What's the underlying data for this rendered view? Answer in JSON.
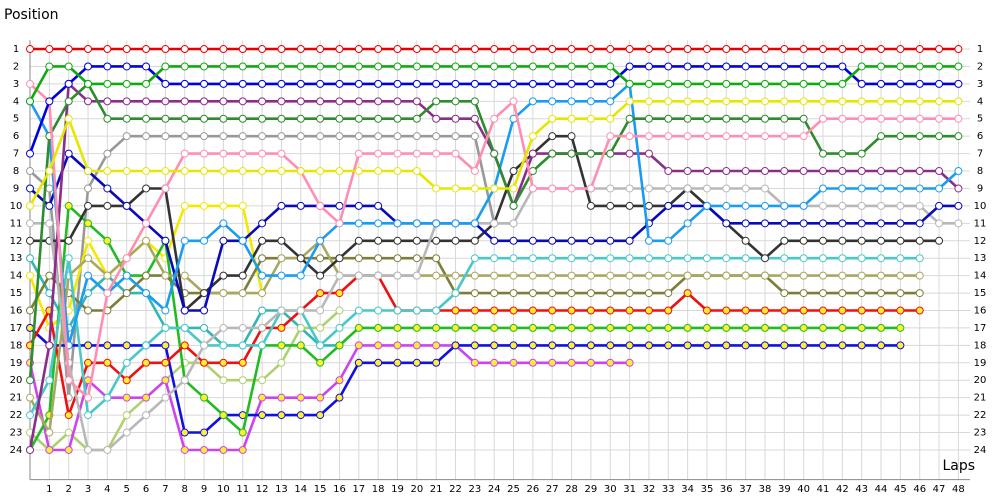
{
  "chart_data": {
    "type": "line",
    "ylabel": "Position",
    "xlabel": "Laps",
    "x": [
      0,
      1,
      2,
      3,
      4,
      5,
      6,
      7,
      8,
      9,
      10,
      11,
      12,
      13,
      14,
      15,
      16,
      17,
      18,
      19,
      20,
      21,
      22,
      23,
      24,
      25,
      26,
      27,
      28,
      29,
      30,
      31,
      32,
      33,
      34,
      35,
      36,
      37,
      38,
      39,
      40,
      41,
      42,
      43,
      44,
      45,
      46,
      47,
      48
    ],
    "xlim": [
      0,
      48.6
    ],
    "xticks": [
      1,
      2,
      3,
      4,
      5,
      6,
      7,
      8,
      9,
      10,
      11,
      12,
      13,
      14,
      15,
      16,
      17,
      18,
      19,
      20,
      21,
      22,
      23,
      24,
      25,
      26,
      27,
      28,
      29,
      30,
      31,
      32,
      33,
      34,
      35,
      36,
      37,
      38,
      39,
      40,
      41,
      42,
      43,
      44,
      45,
      46,
      47,
      48
    ],
    "ylim": [
      0.5,
      25.7
    ],
    "yticks": [
      1,
      2,
      3,
      4,
      5,
      6,
      7,
      8,
      9,
      10,
      11,
      12,
      13,
      14,
      15,
      16,
      17,
      18,
      19,
      20,
      21,
      22,
      23,
      24
    ],
    "y_inverted": true,
    "grid": true,
    "grid_color": "#d8d8d8",
    "series": [
      {
        "color": "#e80000",
        "marker_fill": "#ffffff",
        "values": [
          1,
          1,
          1,
          1,
          1,
          1,
          1,
          1,
          1,
          1,
          1,
          1,
          1,
          1,
          1,
          1,
          1,
          1,
          1,
          1,
          1,
          1,
          1,
          1,
          1,
          1,
          1,
          1,
          1,
          1,
          1,
          1,
          1,
          1,
          1,
          1,
          1,
          1,
          1,
          1,
          1,
          1,
          1,
          1,
          1,
          1,
          1,
          1,
          1
        ]
      },
      {
        "color": "#11aa11",
        "marker_fill": "#ffffff",
        "values": [
          4,
          2,
          2,
          3,
          3,
          3,
          3,
          2,
          2,
          2,
          2,
          2,
          2,
          2,
          2,
          2,
          2,
          2,
          2,
          2,
          2,
          2,
          2,
          2,
          2,
          2,
          2,
          2,
          2,
          2,
          2,
          3,
          3,
          3,
          3,
          3,
          3,
          3,
          3,
          3,
          3,
          3,
          3,
          2,
          2,
          2,
          2,
          2,
          2
        ]
      },
      {
        "color": "#0000dd",
        "marker_fill": "#ffffff",
        "values": [
          7,
          4,
          3,
          2,
          2,
          2,
          2,
          3,
          3,
          3,
          3,
          3,
          3,
          3,
          3,
          3,
          3,
          3,
          3,
          3,
          3,
          3,
          3,
          3,
          3,
          3,
          3,
          3,
          3,
          3,
          3,
          2,
          2,
          2,
          2,
          2,
          2,
          2,
          2,
          2,
          2,
          2,
          2,
          3,
          3,
          3,
          3,
          3,
          3
        ]
      },
      {
        "color": "#e6e600",
        "marker_fill": "#ffffff",
        "values": [
          10,
          8,
          5,
          8,
          8,
          8,
          8,
          8,
          8,
          8,
          8,
          8,
          8,
          8,
          8,
          8,
          8,
          8,
          8,
          8,
          8,
          9,
          9,
          9,
          9,
          9,
          6,
          5,
          5,
          5,
          5,
          4,
          4,
          4,
          4,
          4,
          4,
          4,
          4,
          4,
          4,
          4,
          4,
          4,
          4,
          4,
          4,
          4,
          4
        ]
      },
      {
        "color": "#ff8fb0",
        "marker_fill": "#ffffff",
        "values": [
          3,
          4,
          20,
          21,
          15,
          13,
          11,
          9,
          7,
          7,
          7,
          7,
          7,
          7,
          8,
          10,
          11,
          7,
          7,
          7,
          7,
          7,
          7,
          8,
          5,
          4,
          9,
          9,
          9,
          9,
          6,
          6,
          6,
          6,
          6,
          6,
          6,
          6,
          6,
          6,
          6,
          5,
          5,
          5,
          5,
          5,
          5,
          5,
          5
        ]
      },
      {
        "color": "#2e8b2e",
        "marker_fill": "#ffffff",
        "values": [
          20,
          6,
          4,
          3,
          5,
          5,
          5,
          5,
          5,
          5,
          5,
          5,
          5,
          5,
          5,
          5,
          5,
          5,
          5,
          5,
          5,
          4,
          4,
          4,
          7,
          10,
          8,
          7,
          7,
          7,
          7,
          5,
          5,
          5,
          5,
          5,
          5,
          5,
          5,
          5,
          5,
          7,
          7,
          7,
          6,
          6,
          6,
          6,
          6
        ]
      },
      {
        "color": "#1a9cf0",
        "marker_fill": "#ffffff",
        "values": [
          4,
          6,
          18,
          14,
          15,
          14,
          15,
          16,
          12,
          12,
          11,
          12,
          14,
          14,
          14,
          12,
          11,
          11,
          11,
          11,
          11,
          11,
          11,
          11,
          9,
          5,
          4,
          4,
          4,
          4,
          4,
          3,
          12,
          12,
          11,
          10,
          10,
          10,
          10,
          10,
          10,
          9,
          9,
          9,
          9,
          9,
          9,
          9,
          8
        ]
      },
      {
        "color": "#8b2d8b",
        "marker_fill": "#ffffff",
        "values": [
          24,
          18,
          3,
          4,
          4,
          4,
          4,
          4,
          4,
          4,
          4,
          4,
          4,
          4,
          4,
          4,
          4,
          4,
          4,
          4,
          4,
          5,
          5,
          5,
          7,
          10,
          7,
          7,
          7,
          7,
          7,
          7,
          7,
          8,
          8,
          8,
          8,
          8,
          8,
          8,
          8,
          8,
          8,
          8,
          8,
          8,
          8,
          8,
          9
        ]
      },
      {
        "color": "#0a0ab8",
        "marker_fill": "#ffffff",
        "values": [
          9,
          10,
          7,
          8,
          9,
          10,
          11,
          12,
          16,
          16,
          12,
          12,
          11,
          10,
          10,
          10,
          10,
          10,
          10,
          11,
          11,
          11,
          11,
          11,
          12,
          12,
          12,
          12,
          12,
          12,
          12,
          12,
          11,
          10,
          10,
          10,
          11,
          11,
          11,
          11,
          11,
          11,
          11,
          11,
          11,
          11,
          11,
          10,
          10
        ]
      },
      {
        "color": "#b8b8b8",
        "marker_fill": "#ffffff",
        "values": [
          11,
          11,
          19,
          24,
          24,
          23,
          22,
          21,
          20,
          18,
          17,
          17,
          17,
          16,
          16,
          16,
          14,
          14,
          14,
          14,
          14,
          11,
          11,
          11,
          11,
          11,
          9,
          9,
          9,
          9,
          9,
          9,
          9,
          9,
          9,
          9,
          9,
          9,
          9,
          10,
          10,
          10,
          10,
          10,
          10,
          10,
          10,
          11,
          11
        ]
      },
      {
        "color": "#333333",
        "marker_fill": "#ffffff",
        "values": [
          12,
          12,
          12,
          10,
          10,
          10,
          9,
          9,
          16,
          15,
          14,
          14,
          12,
          12,
          13,
          14,
          13,
          12,
          12,
          12,
          12,
          12,
          12,
          12,
          11,
          8,
          7,
          6,
          6,
          10,
          10,
          10,
          10,
          10,
          9,
          10,
          11,
          12,
          13,
          12,
          12,
          12,
          12,
          12,
          12,
          12,
          12,
          12,
          null
        ]
      },
      {
        "color": "#48c8c8",
        "marker_fill": "#ffffff",
        "values": [
          22,
          20,
          13,
          22,
          21,
          19,
          18,
          17,
          17,
          18,
          18,
          18,
          18,
          16,
          16,
          18,
          17,
          16,
          16,
          16,
          16,
          16,
          15,
          13,
          13,
          13,
          13,
          13,
          13,
          13,
          13,
          13,
          13,
          13,
          13,
          13,
          13,
          13,
          13,
          13,
          13,
          13,
          13,
          13,
          13,
          13,
          13,
          null,
          null
        ]
      },
      {
        "color": "#a8a860",
        "marker_fill": "#ffffff",
        "values": [
          21,
          23,
          14,
          13,
          14,
          13,
          12,
          14,
          14,
          15,
          15,
          15,
          15,
          13,
          13,
          12,
          14,
          14,
          14,
          14,
          14,
          14,
          14,
          14,
          14,
          14,
          14,
          14,
          14,
          14,
          14,
          14,
          14,
          14,
          14,
          14,
          14,
          14,
          14,
          14,
          14,
          14,
          14,
          14,
          14,
          14,
          14,
          null,
          null
        ]
      },
      {
        "color": "#7d7d3a",
        "marker_fill": "#ffffff",
        "values": [
          16,
          14,
          15,
          16,
          16,
          15,
          14,
          14,
          15,
          15,
          15,
          15,
          13,
          13,
          13,
          13,
          13,
          13,
          13,
          13,
          13,
          13,
          15,
          15,
          15,
          15,
          15,
          15,
          15,
          15,
          15,
          15,
          15,
          15,
          14,
          14,
          14,
          14,
          14,
          15,
          15,
          15,
          15,
          15,
          15,
          15,
          15,
          null,
          null
        ]
      },
      {
        "color": "#ee1111",
        "marker_fill": "#ffee33",
        "values": [
          18,
          16,
          22,
          19,
          19,
          20,
          19,
          19,
          18,
          19,
          19,
          19,
          17,
          17,
          16,
          15,
          15,
          14,
          14,
          16,
          16,
          16,
          16,
          16,
          16,
          16,
          16,
          16,
          16,
          16,
          16,
          16,
          16,
          16,
          15,
          16,
          16,
          16,
          16,
          16,
          16,
          16,
          16,
          16,
          16,
          16,
          16,
          null,
          null
        ]
      },
      {
        "color": "#22bb22",
        "marker_fill": "#ffee33",
        "values": [
          24,
          22,
          10,
          11,
          12,
          14,
          14,
          12,
          20,
          21,
          22,
          23,
          18,
          18,
          18,
          19,
          18,
          17,
          17,
          17,
          17,
          17,
          17,
          17,
          17,
          17,
          17,
          17,
          17,
          17,
          17,
          17,
          17,
          17,
          17,
          17,
          17,
          17,
          17,
          17,
          17,
          17,
          17,
          17,
          17,
          17,
          null,
          null,
          null
        ]
      },
      {
        "color": "#1010e0",
        "marker_fill": "#ffee33",
        "values": [
          17,
          18,
          18,
          18,
          18,
          18,
          18,
          18,
          23,
          23,
          22,
          22,
          22,
          22,
          22,
          22,
          21,
          19,
          19,
          19,
          19,
          19,
          18,
          18,
          18,
          18,
          18,
          18,
          18,
          18,
          18,
          18,
          18,
          18,
          18,
          18,
          18,
          18,
          18,
          18,
          18,
          18,
          18,
          18,
          18,
          18,
          null,
          null,
          null
        ]
      },
      {
        "color": "#cc44ee",
        "marker_fill": "#ffee33",
        "values": [
          19,
          24,
          24,
          20,
          21,
          21,
          21,
          20,
          24,
          24,
          24,
          24,
          21,
          21,
          21,
          21,
          20,
          18,
          18,
          18,
          18,
          18,
          18,
          19,
          19,
          19,
          19,
          19,
          19,
          19,
          19,
          19,
          null,
          null,
          null,
          null,
          null,
          null,
          null,
          null,
          null,
          null,
          null,
          null,
          null,
          null,
          null,
          null,
          null
        ]
      },
      {
        "color": "#f2e800",
        "marker_fill": "#ffffff",
        "values": [
          14,
          17,
          16,
          12,
          14,
          13,
          12,
          13,
          10,
          10,
          10,
          10,
          15,
          null,
          null,
          null,
          null,
          null,
          null,
          null,
          null,
          null,
          null,
          null,
          null,
          null,
          null,
          null,
          null,
          null,
          null,
          null,
          null,
          null,
          null,
          null,
          null,
          null,
          null,
          null,
          null,
          null,
          null,
          null,
          null,
          null,
          null,
          null,
          null
        ]
      },
      {
        "color": "#999999",
        "marker_fill": "#ffffff",
        "values": [
          8,
          9,
          21,
          9,
          7,
          6,
          6,
          6,
          6,
          6,
          6,
          6,
          6,
          6,
          6,
          6,
          6,
          6,
          6,
          6,
          6,
          6,
          6,
          6,
          11,
          11,
          null,
          null,
          null,
          null,
          null,
          null,
          null,
          null,
          null,
          null,
          null,
          null,
          null,
          null,
          null,
          null,
          null,
          null,
          null,
          null,
          null,
          null,
          null
        ]
      },
      {
        "color": "#b0d070",
        "marker_fill": "#ffffff",
        "values": [
          23,
          24,
          23,
          24,
          24,
          22,
          21,
          20,
          19,
          19,
          20,
          20,
          20,
          19,
          17,
          17,
          16,
          null,
          null,
          null,
          null,
          null,
          null,
          null,
          null,
          null,
          null,
          null,
          null,
          null,
          null,
          null,
          null,
          null,
          null,
          null,
          null,
          null,
          null,
          null,
          null,
          null,
          null,
          null,
          null,
          null,
          null,
          null,
          null
        ]
      },
      {
        "color": "#33b5b5",
        "marker_fill": "#ffffff",
        "values": [
          13,
          15,
          17,
          15,
          14,
          15,
          15,
          17,
          17,
          17,
          18,
          18,
          16,
          16,
          17,
          18,
          18,
          null,
          null,
          null,
          null,
          null,
          null,
          null,
          null,
          null,
          null,
          null,
          null,
          null,
          null,
          null,
          null,
          null,
          null,
          null,
          null,
          null,
          null,
          null,
          null,
          null,
          null,
          null,
          null,
          null,
          null,
          null,
          null
        ]
      }
    ]
  }
}
